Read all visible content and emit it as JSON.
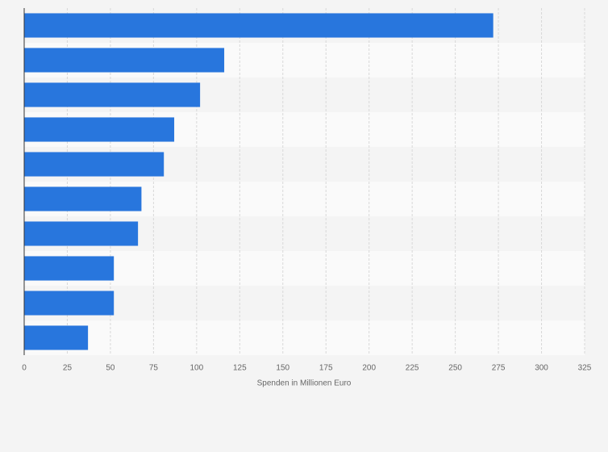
{
  "chart_data": {
    "type": "bar",
    "orientation": "horizontal",
    "x_label": "Spenden in Millionen Euro",
    "categories": [
      null,
      null,
      null,
      null,
      null,
      null,
      null,
      null,
      null,
      null
    ],
    "values": [
      272,
      116,
      102,
      87,
      81,
      68,
      66,
      52,
      52,
      37
    ],
    "color": "#2876dd",
    "xlim": [
      0,
      325
    ],
    "xticks": [
      0,
      25,
      50,
      75,
      100,
      125,
      150,
      175,
      200,
      225,
      250,
      275,
      300,
      325
    ],
    "grid": true
  }
}
